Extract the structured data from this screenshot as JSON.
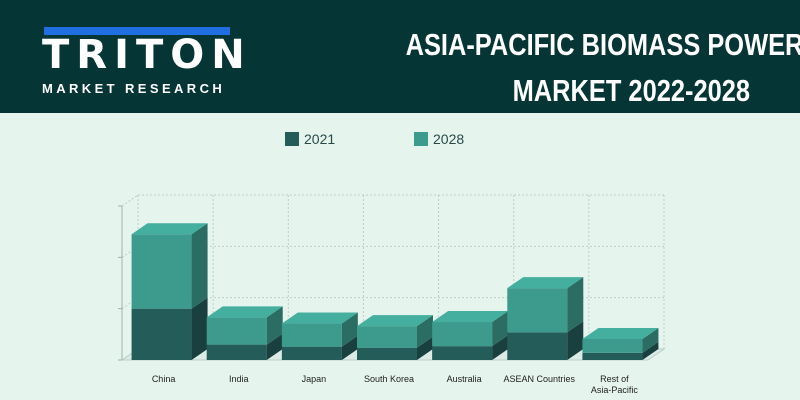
{
  "brand": {
    "name": "TRITON",
    "tagline": "MARKET RESEARCH",
    "accent": "#1f6fe0"
  },
  "header": {
    "title_line1": "ASIA-PACIFIC BIOMASS POWER",
    "title_line2": "MARKET 2022-2028",
    "background": "#053535"
  },
  "chart_data": {
    "type": "bar",
    "stacked": true,
    "style": "3d",
    "categories": [
      "China",
      "India",
      "Japan",
      "South Korea",
      "Australia",
      "ASEAN Countries",
      "Rest of Asia-Pacific"
    ],
    "series": [
      {
        "name": "2021",
        "color": "#235c58",
        "values": [
          1.0,
          0.3,
          0.26,
          0.24,
          0.27,
          0.54,
          0.14
        ]
      },
      {
        "name": "2028",
        "color": "#3d9b8e",
        "values": [
          1.45,
          0.53,
          0.45,
          0.42,
          0.47,
          0.86,
          0.27
        ]
      }
    ],
    "ylim": [
      0,
      3
    ],
    "grid": true,
    "legend_position": "top-center",
    "title": "",
    "xlabel": "",
    "ylabel": ""
  }
}
